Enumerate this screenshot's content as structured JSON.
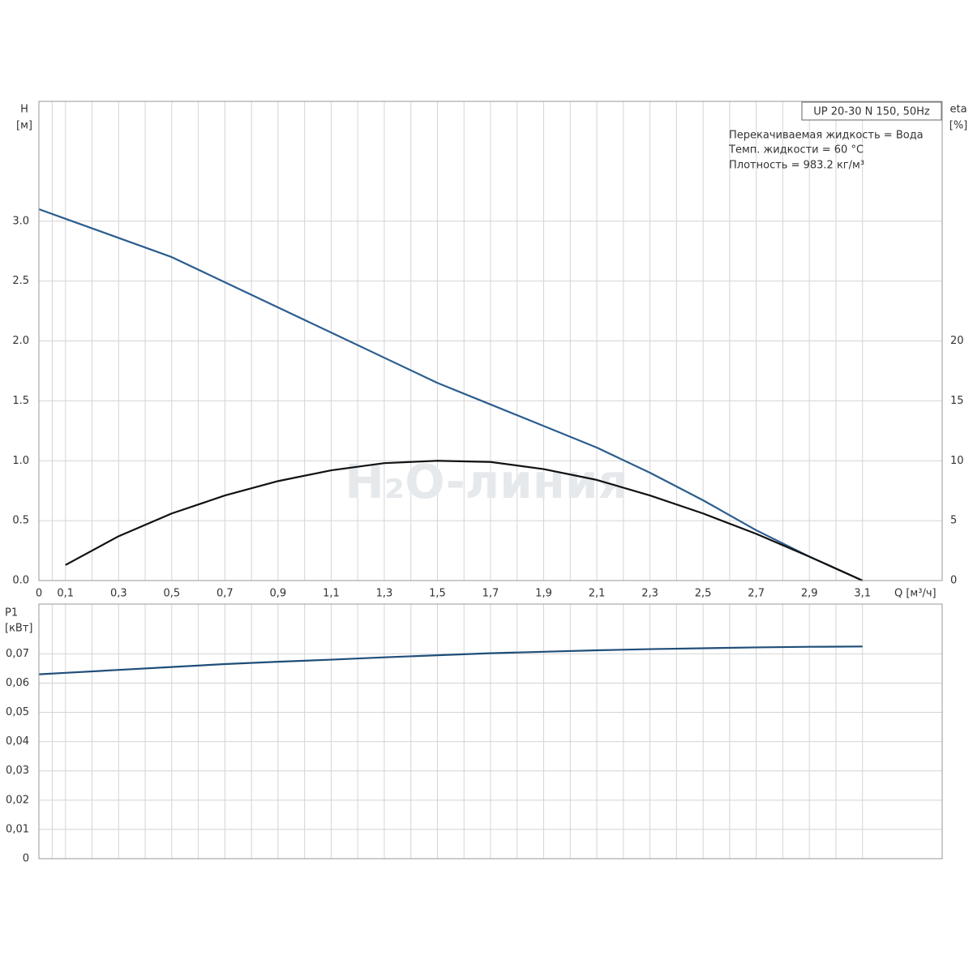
{
  "chart_data": [
    {
      "type": "line",
      "legend_title": "UP 20-30 N 150, 50Hz",
      "notes": [
        "Перекачиваемая жидкость = Вода",
        "Темп. жидкости = 60 °C",
        "Плотность = 983.2 кг/м³"
      ],
      "watermark": "H₂O-линия",
      "y_label": "H",
      "y_unit": "[м]",
      "y2_label": "eta",
      "y2_unit": "[%]",
      "x_label": "Q [м³/ч]",
      "x": [
        0,
        0.1,
        0.3,
        0.5,
        0.7,
        0.9,
        1.1,
        1.3,
        1.5,
        1.7,
        1.9,
        2.1,
        2.3,
        2.5,
        2.7,
        2.9,
        3.1
      ],
      "xlim": [
        0,
        3.4
      ],
      "xticks": [
        0,
        {
          "value": 0.1,
          "label": "0,1"
        },
        {
          "value": 0.3,
          "label": "0,3"
        },
        {
          "value": 0.5,
          "label": "0,5"
        },
        {
          "value": 0.7,
          "label": "0,7"
        },
        {
          "value": 0.9,
          "label": "0,9"
        },
        {
          "value": 1.1,
          "label": "1,1"
        },
        {
          "value": 1.3,
          "label": "1,3"
        },
        {
          "value": 1.5,
          "label": "1,5"
        },
        {
          "value": 1.7,
          "label": "1,7"
        },
        {
          "value": 1.9,
          "label": "1,9"
        },
        {
          "value": 2.1,
          "label": "2,1"
        },
        {
          "value": 2.3,
          "label": "2,3"
        },
        {
          "value": 2.5,
          "label": "2,5"
        },
        {
          "value": 2.7,
          "label": "2,7"
        },
        {
          "value": 2.9,
          "label": "2,9"
        },
        {
          "value": 3.1,
          "label": "3,1"
        }
      ],
      "ylim": [
        0,
        4.0
      ],
      "yticks": [
        {
          "value": 0,
          "label": "0.0"
        },
        0.5,
        {
          "value": 1,
          "label": "1.0"
        },
        1.5,
        {
          "value": 2,
          "label": "2.0"
        },
        2.5,
        {
          "value": 3,
          "label": "3.0"
        }
      ],
      "y2lim": [
        0,
        40
      ],
      "y2ticks": [
        0,
        5,
        10,
        15,
        20
      ],
      "grid": true,
      "series": [
        {
          "name": "H",
          "color": "#2b5d8f",
          "values": [
            3.1,
            3.02,
            2.86,
            2.7,
            2.49,
            2.28,
            2.07,
            1.86,
            1.65,
            1.47,
            1.29,
            1.11,
            0.9,
            0.67,
            0.42,
            0.2,
            0
          ]
        },
        {
          "name": "eta",
          "color": "#111111",
          "axis": "y2",
          "values": [
            null,
            1.3,
            3.7,
            5.6,
            7.1,
            8.3,
            9.2,
            9.8,
            10.0,
            9.9,
            9.3,
            8.4,
            7.1,
            5.6,
            3.9,
            2.0,
            0
          ]
        }
      ]
    },
    {
      "type": "line",
      "y_label": "P1",
      "y_unit": "[кВт]",
      "ylim": [
        0,
        0.087
      ],
      "yticks": [
        0,
        {
          "value": 0.01,
          "label": "0,01"
        },
        {
          "value": 0.02,
          "label": "0,02"
        },
        {
          "value": 0.03,
          "label": "0,03"
        },
        {
          "value": 0.04,
          "label": "0,04"
        },
        {
          "value": 0.05,
          "label": "0,05"
        },
        {
          "value": 0.06,
          "label": "0,06"
        },
        {
          "value": 0.07,
          "label": "0,07"
        }
      ],
      "grid": true,
      "series": [
        {
          "name": "P1",
          "color": "#1f4e79",
          "values": [
            0.063,
            0.0635,
            0.0645,
            0.0655,
            0.0665,
            0.0673,
            0.068,
            0.0688,
            0.0695,
            0.0702,
            0.0707,
            0.0712,
            0.0716,
            0.0719,
            0.0722,
            0.0724,
            0.0725
          ]
        }
      ]
    }
  ]
}
